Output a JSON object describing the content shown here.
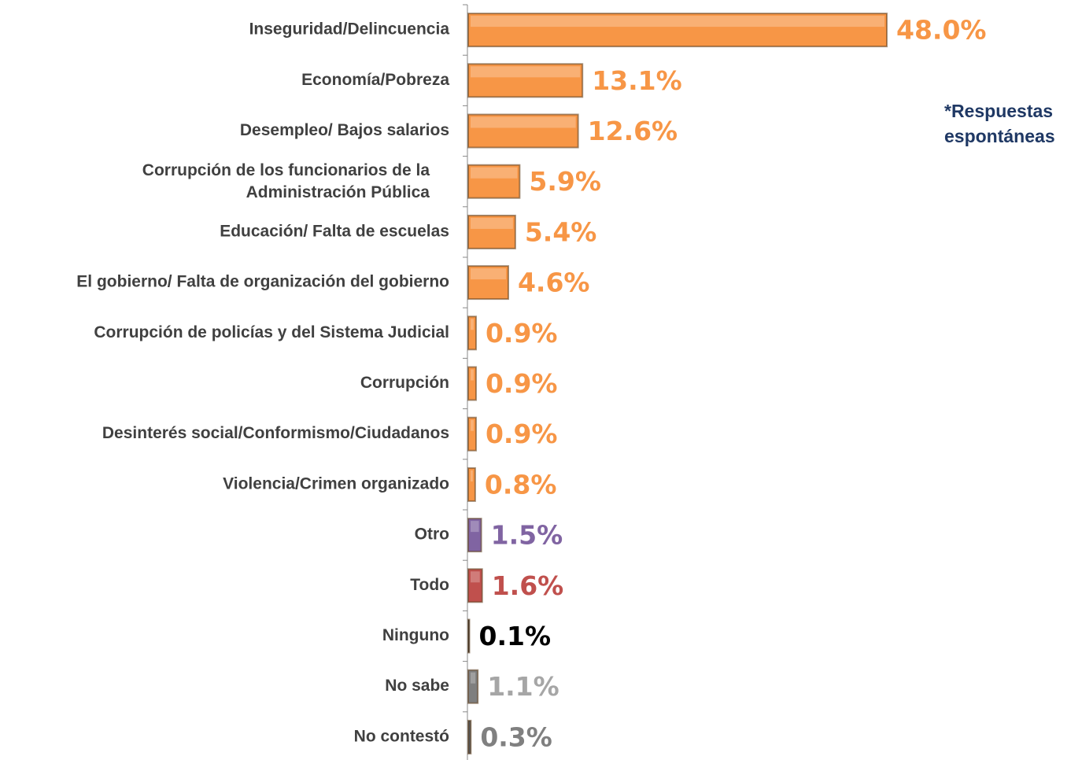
{
  "chart_data": {
    "type": "bar",
    "orientation": "horizontal",
    "note": [
      "*Respuestas",
      "espontáneas"
    ],
    "categories": [
      "Inseguridad/Delincuencia",
      "Economía/Pobreza",
      "Desempleo/ Bajos salarios",
      [
        "Corrupción de los funcionarios de la",
        "Administración Pública"
      ],
      "Educación/ Falta de escuelas",
      "El gobierno/ Falta de organización del gobierno",
      "Corrupción de policías y del Sistema Judicial",
      "Corrupción",
      "Desinterés social/Conformismo/Ciudadanos",
      "Violencia/Crimen organizado",
      "Otro",
      "Todo",
      "Ninguno",
      "No sabe",
      "No contestó"
    ],
    "values": [
      48.0,
      13.1,
      12.6,
      5.9,
      5.4,
      4.6,
      0.9,
      0.9,
      0.9,
      0.8,
      1.5,
      1.6,
      0.1,
      1.1,
      0.3
    ],
    "value_labels": [
      "48.0%",
      "13.1%",
      "12.6%",
      "5.9%",
      "5.4%",
      "4.6%",
      "0.9%",
      "0.9%",
      "0.9%",
      "0.8%",
      "1.5%",
      "1.6%",
      "0.1%",
      "1.1%",
      "0.3%"
    ],
    "colors": [
      "#f79646",
      "#f79646",
      "#f79646",
      "#f79646",
      "#f79646",
      "#f79646",
      "#f79646",
      "#f79646",
      "#f79646",
      "#f79646",
      "#8064a2",
      "#c0504d",
      "#222222",
      "#7f7f7f",
      "#595959"
    ],
    "label_colors": [
      "#f79646",
      "#f79646",
      "#f79646",
      "#f79646",
      "#f79646",
      "#f79646",
      "#f79646",
      "#f79646",
      "#f79646",
      "#f79646",
      "#8064a2",
      "#c0504d",
      "#000000",
      "#a6a6a6",
      "#808080"
    ]
  }
}
